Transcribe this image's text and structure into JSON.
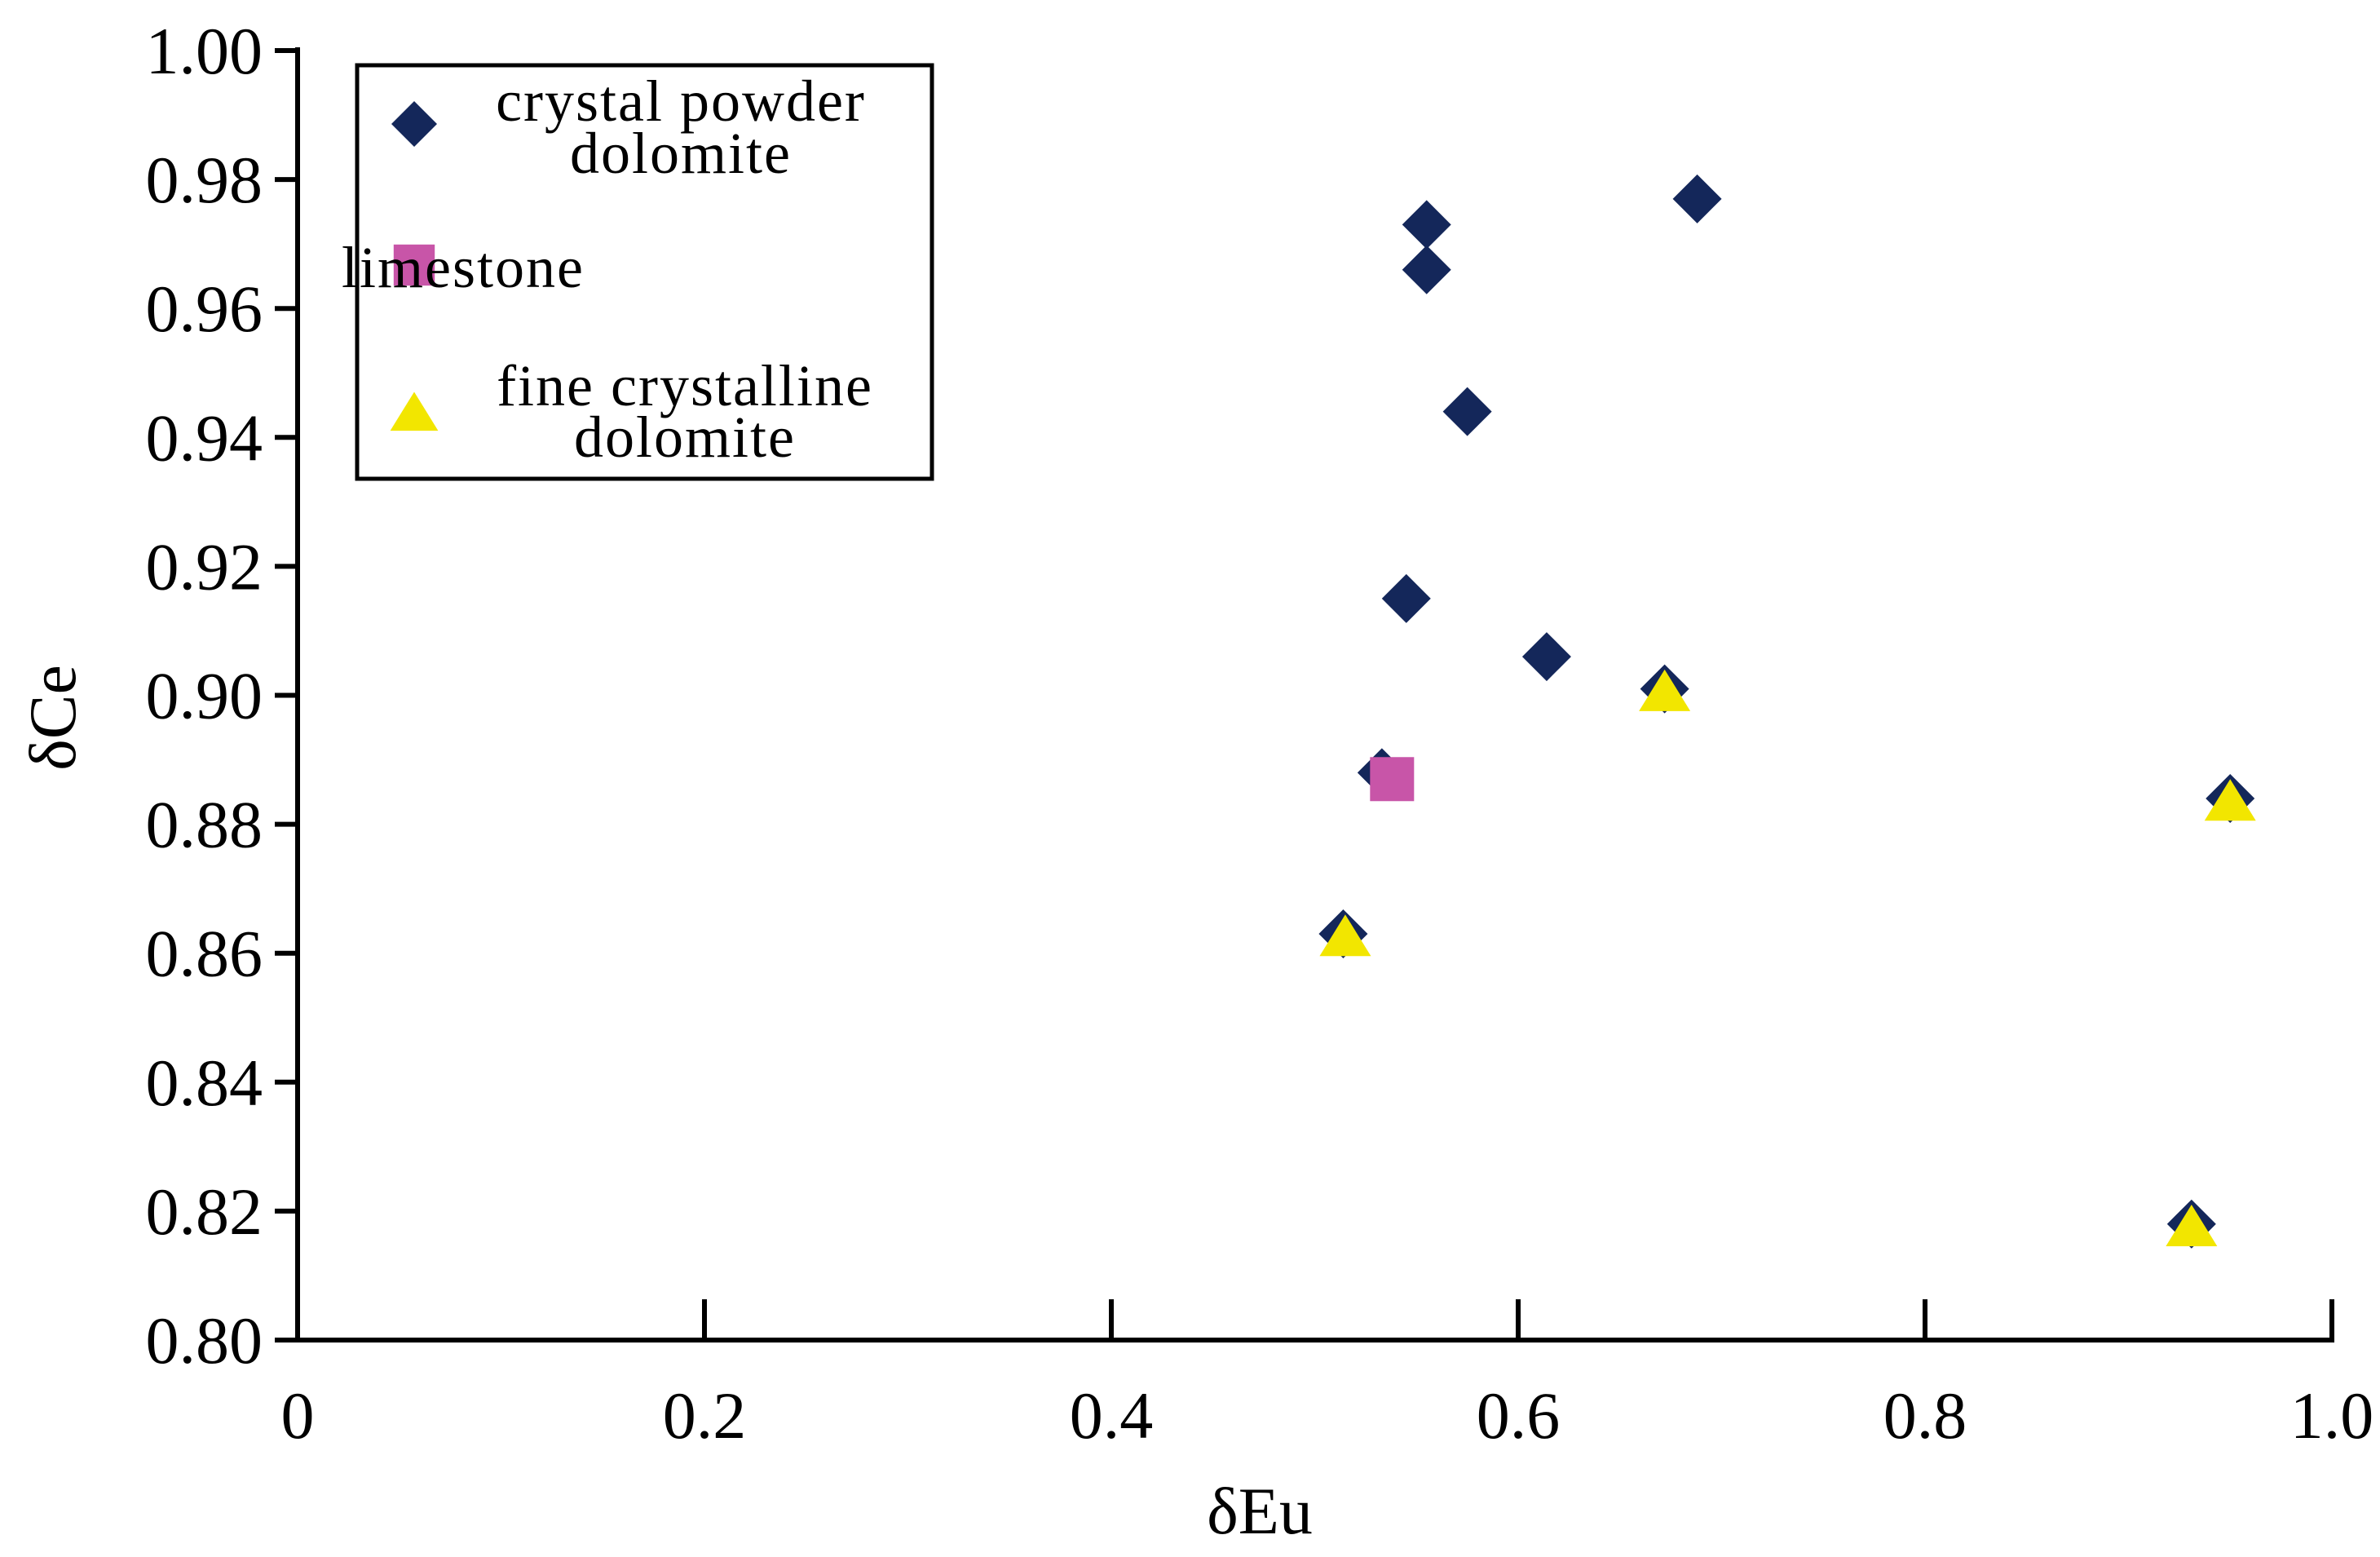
{
  "chart_data": {
    "type": "scatter",
    "title": "",
    "xlabel": "δEu",
    "ylabel": "δCe",
    "xlim": [
      0,
      1.0
    ],
    "ylim": [
      0.8,
      1.0
    ],
    "x_ticks": [
      {
        "value": 0,
        "label": "0"
      },
      {
        "value": 0.2,
        "label": "0.2"
      },
      {
        "value": 0.4,
        "label": "0.4"
      },
      {
        "value": 0.6,
        "label": "0.6"
      },
      {
        "value": 0.8,
        "label": "0.8"
      },
      {
        "value": 1.0,
        "label": "1.0"
      }
    ],
    "y_ticks": [
      {
        "value": 0.8,
        "label": "0.80"
      },
      {
        "value": 0.82,
        "label": "0.82"
      },
      {
        "value": 0.84,
        "label": "0.84"
      },
      {
        "value": 0.86,
        "label": "0.86"
      },
      {
        "value": 0.88,
        "label": "0.88"
      },
      {
        "value": 0.9,
        "label": "0.90"
      },
      {
        "value": 0.92,
        "label": "0.92"
      },
      {
        "value": 0.94,
        "label": "0.94"
      },
      {
        "value": 0.96,
        "label": "0.96"
      },
      {
        "value": 0.98,
        "label": "0.98"
      },
      {
        "value": 1.0,
        "label": "1.00"
      }
    ],
    "grid": false,
    "legend_position": "top-left",
    "series": [
      {
        "name": "crystal powder dolomite",
        "legend_lines": [
          "crystal powder",
          "dolomite"
        ],
        "marker": "diamond",
        "color": "#14275A",
        "points": [
          {
            "x": 0.555,
            "y": 0.973
          },
          {
            "x": 0.555,
            "y": 0.966
          },
          {
            "x": 0.688,
            "y": 0.977
          },
          {
            "x": 0.575,
            "y": 0.944
          },
          {
            "x": 0.545,
            "y": 0.915
          },
          {
            "x": 0.614,
            "y": 0.906
          },
          {
            "x": 0.672,
            "y": 0.901
          },
          {
            "x": 0.533,
            "y": 0.888
          },
          {
            "x": 0.514,
            "y": 0.863
          },
          {
            "x": 0.95,
            "y": 0.884
          },
          {
            "x": 0.931,
            "y": 0.818
          }
        ]
      },
      {
        "name": "limestone",
        "legend_lines": [
          "limestone"
        ],
        "marker": "square",
        "color": "#C855A8",
        "points": [
          {
            "x": 0.538,
            "y": 0.887
          }
        ]
      },
      {
        "name": "fine crystalline dolomite",
        "legend_lines": [
          "fine crystalline",
          "dolomite"
        ],
        "marker": "triangle",
        "color": "#F2E600",
        "points": [
          {
            "x": 0.515,
            "y": 0.862
          },
          {
            "x": 0.672,
            "y": 0.9
          },
          {
            "x": 0.95,
            "y": 0.883
          },
          {
            "x": 0.931,
            "y": 0.817
          }
        ]
      }
    ]
  }
}
